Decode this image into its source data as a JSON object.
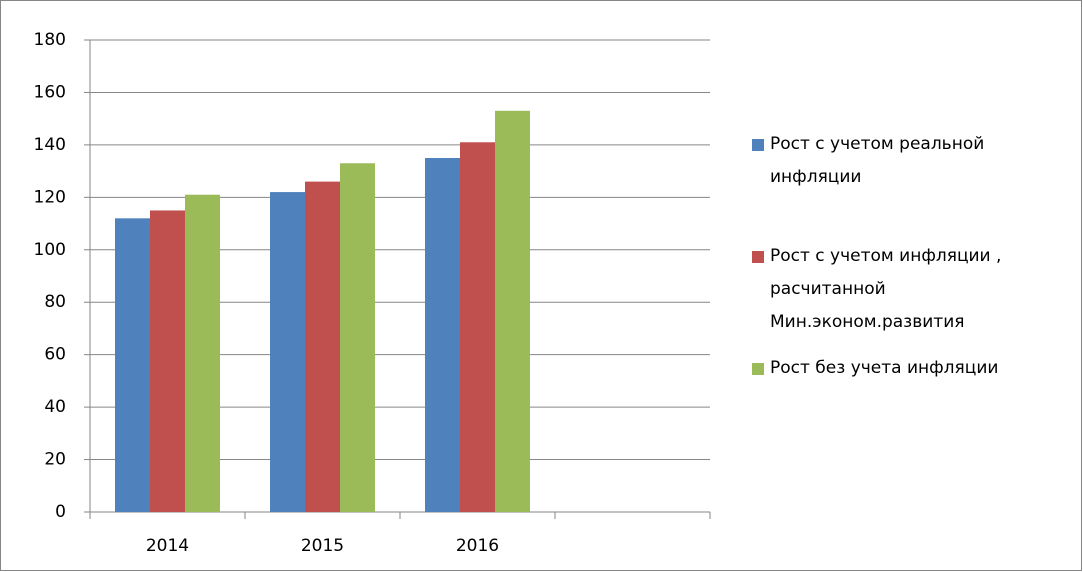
{
  "chart_data": {
    "type": "bar",
    "categories": [
      "2014",
      "2015",
      "2016",
      null
    ],
    "series": [
      {
        "name": "Рост с учетом реальной инфляции",
        "color": "#4f81bd",
        "values": [
          112,
          122,
          135,
          null
        ]
      },
      {
        "name": "Рост с учетом инфляции , расчитанной Мин.эконом.развития",
        "color": "#c0504d",
        "values": [
          115,
          126,
          141,
          null
        ]
      },
      {
        "name": "Рост без учета инфляции",
        "color": "#9bbb59",
        "values": [
          121,
          133,
          153,
          null
        ]
      }
    ],
    "ylim": [
      0,
      180
    ],
    "yticks": [
      0,
      20,
      40,
      60,
      80,
      100,
      120,
      140,
      160,
      180
    ],
    "grid": true,
    "legend": "right"
  }
}
